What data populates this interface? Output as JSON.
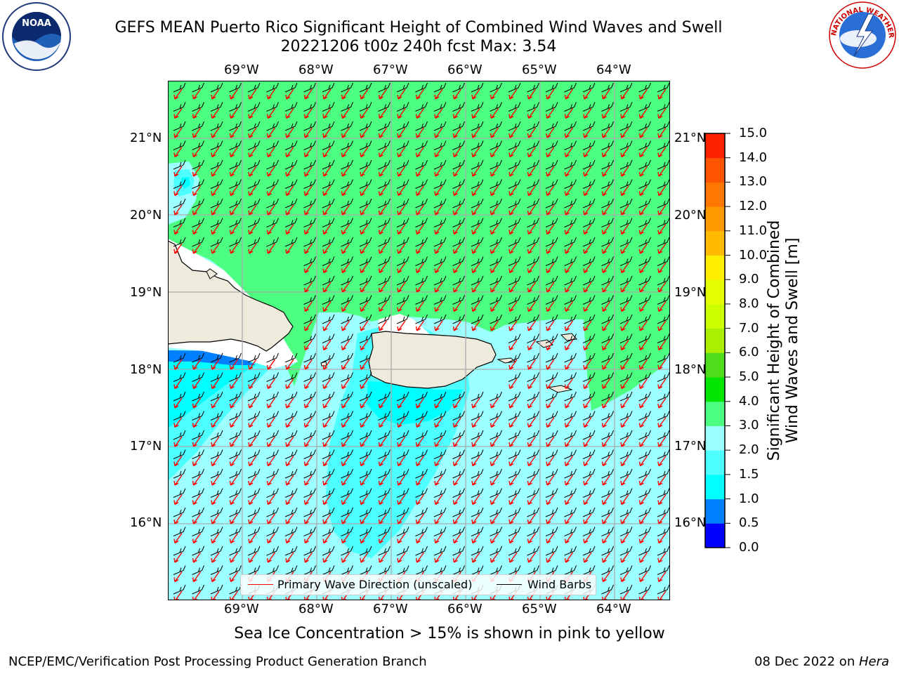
{
  "title": {
    "line1": "GEFS MEAN Puerto Rico Significant Height of Combined Wind Waves and Swell",
    "line2": "20221206 t00z 240h fcst   Max: 3.54"
  },
  "map": {
    "lon_range": [
      -70,
      -63.25
    ],
    "lat_range": [
      15,
      21.75
    ],
    "lon_ticks": [
      "69°W",
      "68°W",
      "67°W",
      "66°W",
      "65°W",
      "64°W"
    ],
    "lat_ticks": [
      "21°N",
      "20°N",
      "19°N",
      "18°N",
      "17°N",
      "16°N"
    ],
    "gridlines": true,
    "land_color": "#efebdc",
    "wave_arrow_color": "#ff0000",
    "wind_barb_color": "#000000",
    "max_value": 3.54
  },
  "legend": {
    "wave_direction_label": "Primary Wave Direction (unscaled)",
    "wind_barbs_label": "Wind Barbs",
    "placement": "lower-center"
  },
  "colorbar": {
    "label_line1": "Significant Height of Combined",
    "label_line2": "Wind Waves and Swell [m]",
    "ticks": [
      "15.0",
      "14.0",
      "13.0",
      "12.0",
      "11.0",
      "10.0",
      "9.0",
      "8.0",
      "7.0",
      "6.0",
      "5.0",
      "4.0",
      "3.0",
      "2.0",
      "1.5",
      "1.0",
      "0.5",
      "0.0"
    ],
    "bins": [
      {
        "from": 0.0,
        "to": 0.5,
        "color": "#0000ff"
      },
      {
        "from": 0.5,
        "to": 1.0,
        "color": "#0080ff"
      },
      {
        "from": 1.0,
        "to": 1.5,
        "color": "#00ffff"
      },
      {
        "from": 1.5,
        "to": 2.0,
        "color": "#4dffff"
      },
      {
        "from": 2.0,
        "to": 3.0,
        "color": "#9dffff"
      },
      {
        "from": 3.0,
        "to": 4.0,
        "color": "#4dff80"
      },
      {
        "from": 4.0,
        "to": 5.0,
        "color": "#00e600"
      },
      {
        "from": 5.0,
        "to": 6.0,
        "color": "#4ddd1a"
      },
      {
        "from": 6.0,
        "to": 7.0,
        "color": "#aaee00"
      },
      {
        "from": 7.0,
        "to": 8.0,
        "color": "#ccff00"
      },
      {
        "from": 8.0,
        "to": 9.0,
        "color": "#e6ff00"
      },
      {
        "from": 9.0,
        "to": 10.0,
        "color": "#ffee00"
      },
      {
        "from": 10.0,
        "to": 11.0,
        "color": "#ffbb00"
      },
      {
        "from": 11.0,
        "to": 12.0,
        "color": "#ff9900"
      },
      {
        "from": 12.0,
        "to": 13.0,
        "color": "#ff7700"
      },
      {
        "from": 13.0,
        "to": 14.0,
        "color": "#ff5500"
      },
      {
        "from": 14.0,
        "to": 15.0,
        "color": "#ff2200"
      }
    ]
  },
  "sea_ice_note": "Sea Ice Concentration > 15% is shown in pink to yellow",
  "footer": {
    "left": "NCEP/EMC/Verification Post Processing Product Generation Branch",
    "right_date": "08 Dec 2022 on ",
    "right_host": "Hera"
  },
  "logos": {
    "noaa_text": "NOAA",
    "nws_text": "NATIONAL WEATHER SERVICE"
  }
}
